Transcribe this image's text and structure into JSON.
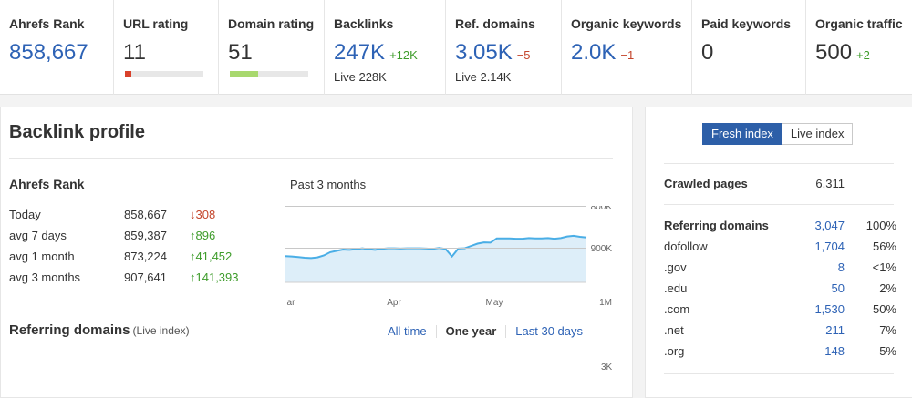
{
  "metrics": [
    {
      "label": "Ahrefs Rank",
      "value": "858,667",
      "style": "link"
    },
    {
      "label": "URL rating",
      "value": "11",
      "bar_fraction": 0.08,
      "bar_color": "#d9412b"
    },
    {
      "label": "Domain rating",
      "value": "51",
      "bar_fraction": 0.36,
      "bar_color": "#a8d86e"
    },
    {
      "label": "Backlinks",
      "value": "247K",
      "style": "link",
      "delta": "+12K",
      "delta_dir": "up",
      "sub": "Live 228K"
    },
    {
      "label": "Ref. domains",
      "value": "3.05K",
      "style": "link",
      "delta": "−5",
      "delta_dir": "down",
      "sub": "Live 2.14K"
    },
    {
      "label": "Organic keywords",
      "value": "2.0K",
      "style": "link",
      "delta": "−1",
      "delta_dir": "down"
    },
    {
      "label": "Paid keywords",
      "value": "0"
    },
    {
      "label": "Organic traffic",
      "value": "500",
      "delta": "+2",
      "delta_dir": "up"
    }
  ],
  "backlink_profile": {
    "title": "Backlink profile",
    "ahrefs_rank": {
      "title": "Ahrefs Rank",
      "rows": [
        {
          "label": "Today",
          "value": "858,667",
          "delta": "↓308",
          "dir": "down"
        },
        {
          "label": "avg 7 days",
          "value": "859,387",
          "delta": "↑896",
          "dir": "up"
        },
        {
          "label": "avg 1 month",
          "value": "873,224",
          "delta": "↑41,452",
          "dir": "up"
        },
        {
          "label": "avg 3 months",
          "value": "907,641",
          "delta": "↑141,393",
          "dir": "up"
        }
      ]
    },
    "chart_title": "Past 3 months",
    "referring_domains": {
      "title": "Referring domains",
      "subtitle": "(Live index)",
      "tabs": [
        "All time",
        "One year",
        "Last 30 days"
      ],
      "active_tab": "One year",
      "axis_top": "3K"
    }
  },
  "chart_data": {
    "type": "area",
    "title": "Past 3 months",
    "y_tick_labels": [
      "800K",
      "900K",
      "1M"
    ],
    "x_tick_labels": [
      "ar",
      "Apr",
      "May"
    ],
    "ylim": [
      1000000,
      800000
    ],
    "y_inverted": true,
    "series": [
      {
        "values": [
          920000,
          921000,
          923000,
          925000,
          926000,
          924000,
          918000,
          908000,
          904000,
          900000,
          901000,
          899000,
          896000,
          899000,
          901000,
          898000,
          896000,
          896000,
          897000,
          896000,
          896000,
          896000,
          897000,
          898000,
          895000,
          898000,
          921000,
          897000,
          896000,
          889000,
          882000,
          878000,
          879000,
          866000,
          866000,
          866000,
          867000,
          867000,
          865000,
          866000,
          866000,
          865000,
          867000,
          865000,
          860000,
          858000,
          861000,
          863000
        ]
      }
    ],
    "line_color": "#4aaee6",
    "fill_color": "#ddeef9",
    "grid": true
  },
  "index_toggle": {
    "fresh": "Fresh index",
    "live": "Live index",
    "active": "fresh"
  },
  "right_stats": {
    "crawled": {
      "label": "Crawled pages",
      "count": "6,311"
    },
    "ref_domains": [
      {
        "label": "Referring domains",
        "count": "3,047",
        "pct": "100%",
        "bold": true
      },
      {
        "label": "dofollow",
        "count": "1,704",
        "pct": "56%"
      },
      {
        "label": ".gov",
        "count": "8",
        "pct": "<1%"
      },
      {
        "label": ".edu",
        "count": "50",
        "pct": "2%"
      },
      {
        "label": ".com",
        "count": "1,530",
        "pct": "50%"
      },
      {
        "label": ".net",
        "count": "211",
        "pct": "7%"
      },
      {
        "label": ".org",
        "count": "148",
        "pct": "5%"
      }
    ]
  }
}
